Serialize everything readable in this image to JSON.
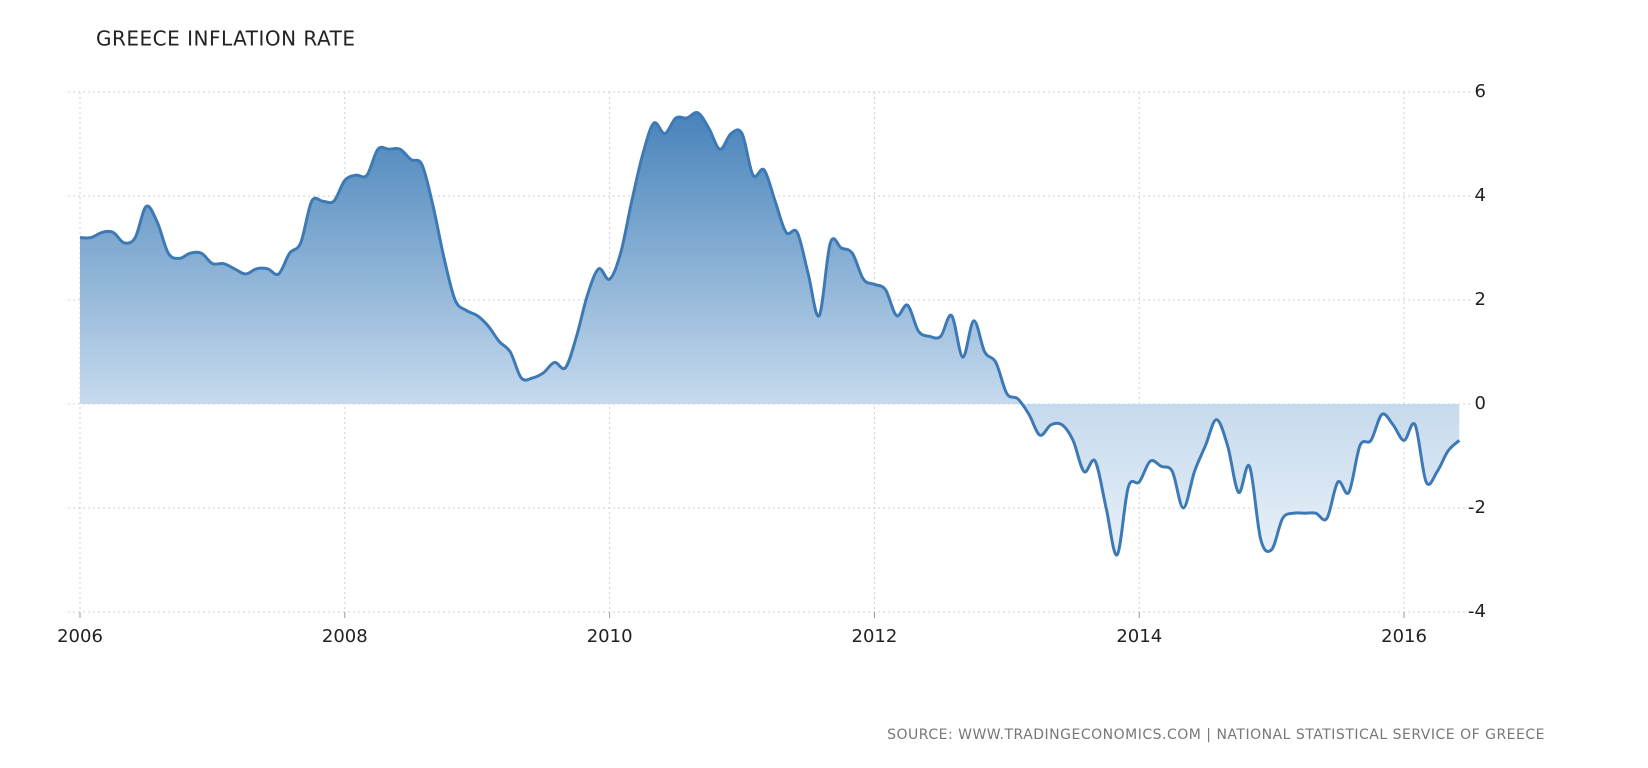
{
  "chart_data": {
    "type": "area",
    "title": "GREECE INFLATION RATE",
    "source": "SOURCE: WWW.TRADINGECONOMICS.COM | NATIONAL STATISTICAL SERVICE OF GREECE",
    "x": [
      2006.0,
      2006.083,
      2006.167,
      2006.25,
      2006.333,
      2006.417,
      2006.5,
      2006.583,
      2006.667,
      2006.75,
      2006.833,
      2006.917,
      2007.0,
      2007.083,
      2007.167,
      2007.25,
      2007.333,
      2007.417,
      2007.5,
      2007.583,
      2007.667,
      2007.75,
      2007.833,
      2007.917,
      2008.0,
      2008.083,
      2008.167,
      2008.25,
      2008.333,
      2008.417,
      2008.5,
      2008.583,
      2008.667,
      2008.75,
      2008.833,
      2008.917,
      2009.0,
      2009.083,
      2009.167,
      2009.25,
      2009.333,
      2009.417,
      2009.5,
      2009.583,
      2009.667,
      2009.75,
      2009.833,
      2009.917,
      2010.0,
      2010.083,
      2010.167,
      2010.25,
      2010.333,
      2010.417,
      2010.5,
      2010.583,
      2010.667,
      2010.75,
      2010.833,
      2010.917,
      2011.0,
      2011.083,
      2011.167,
      2011.25,
      2011.333,
      2011.417,
      2011.5,
      2011.583,
      2011.667,
      2011.75,
      2011.833,
      2011.917,
      2012.0,
      2012.083,
      2012.167,
      2012.25,
      2012.333,
      2012.417,
      2012.5,
      2012.583,
      2012.667,
      2012.75,
      2012.833,
      2012.917,
      2013.0,
      2013.083,
      2013.167,
      2013.25,
      2013.333,
      2013.417,
      2013.5,
      2013.583,
      2013.667,
      2013.75,
      2013.833,
      2013.917,
      2014.0,
      2014.083,
      2014.167,
      2014.25,
      2014.333,
      2014.417,
      2014.5,
      2014.583,
      2014.667,
      2014.75,
      2014.833,
      2014.917,
      2015.0,
      2015.083,
      2015.167,
      2015.25,
      2015.333,
      2015.417,
      2015.5,
      2015.583,
      2015.667,
      2015.75,
      2015.833,
      2015.917,
      2016.0,
      2016.083,
      2016.167,
      2016.25,
      2016.333,
      2016.417
    ],
    "values": [
      3.2,
      3.2,
      3.3,
      3.3,
      3.1,
      3.2,
      3.8,
      3.5,
      2.9,
      2.8,
      2.9,
      2.9,
      2.7,
      2.7,
      2.6,
      2.5,
      2.6,
      2.6,
      2.5,
      2.9,
      3.1,
      3.9,
      3.9,
      3.9,
      4.3,
      4.4,
      4.4,
      4.9,
      4.9,
      4.9,
      4.7,
      4.6,
      3.8,
      2.8,
      2.0,
      1.8,
      1.7,
      1.5,
      1.2,
      1.0,
      0.5,
      0.5,
      0.6,
      0.8,
      0.7,
      1.3,
      2.1,
      2.6,
      2.4,
      2.9,
      3.9,
      4.8,
      5.4,
      5.2,
      5.5,
      5.5,
      5.6,
      5.3,
      4.9,
      5.2,
      5.2,
      4.4,
      4.5,
      3.9,
      3.3,
      3.3,
      2.5,
      1.7,
      3.1,
      3.0,
      2.9,
      2.4,
      2.3,
      2.2,
      1.7,
      1.9,
      1.4,
      1.3,
      1.3,
      1.7,
      0.9,
      1.6,
      1.0,
      0.8,
      0.2,
      0.1,
      -0.2,
      -0.6,
      -0.4,
      -0.4,
      -0.7,
      -1.3,
      -1.1,
      -2.0,
      -2.9,
      -1.6,
      -1.5,
      -1.1,
      -1.2,
      -1.3,
      -2.0,
      -1.3,
      -0.8,
      -0.3,
      -0.8,
      -1.7,
      -1.2,
      -2.6,
      -2.8,
      -2.2,
      -2.1,
      -2.1,
      -2.1,
      -2.2,
      -1.5,
      -1.7,
      -0.8,
      -0.7,
      -0.2,
      -0.4,
      -0.7,
      -0.4,
      -1.5,
      -1.3,
      -0.9,
      -0.7
    ],
    "color": "#3d7ab5",
    "xlim": [
      2006,
      2016.43
    ],
    "xticks": [
      2006,
      2008,
      2010,
      2012,
      2014,
      2016
    ],
    "ylim": [
      -4,
      6
    ],
    "yticks": [
      -4,
      -2,
      0,
      2,
      4,
      6
    ],
    "grid": true
  }
}
